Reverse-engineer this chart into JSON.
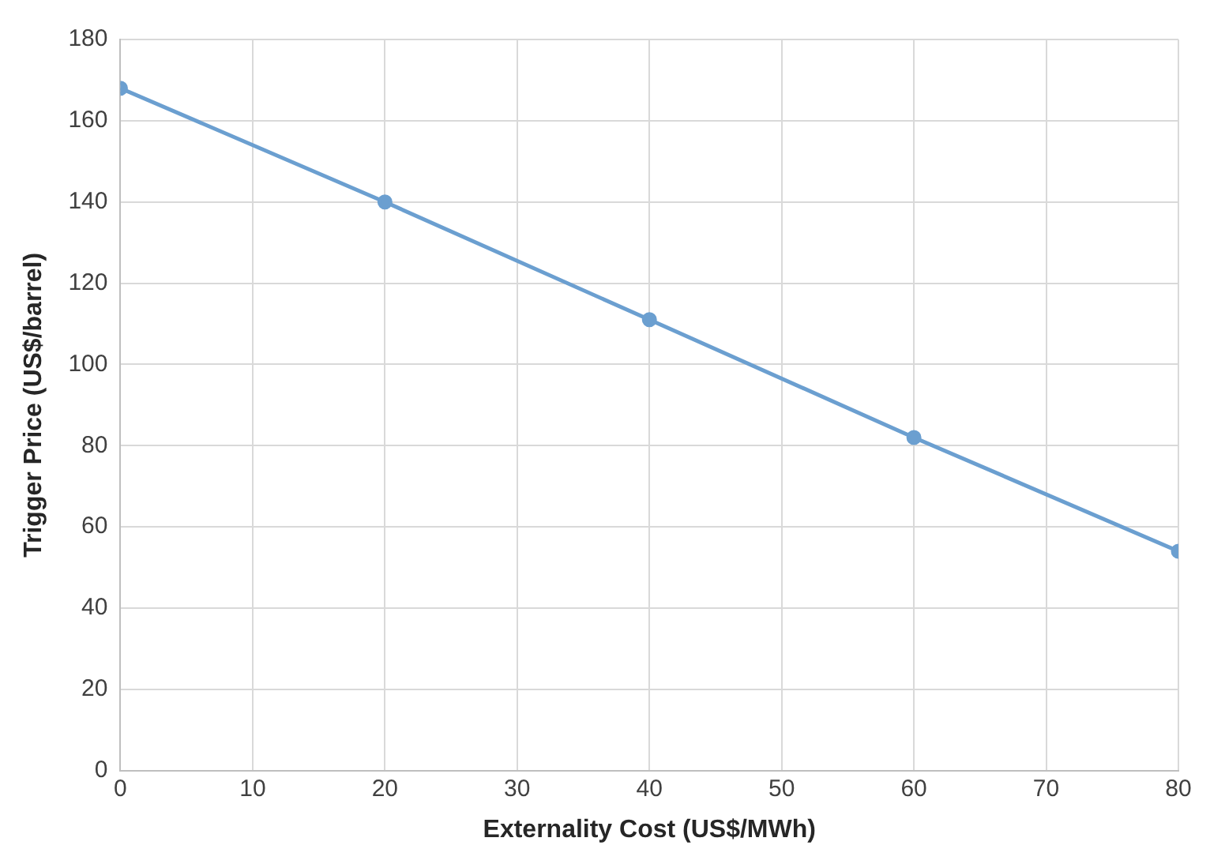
{
  "chart_data": {
    "type": "line",
    "xlabel": "Externality Cost (US$/MWh)",
    "ylabel": "Trigger Price (US$/barrel)",
    "x": [
      0,
      20,
      40,
      60,
      80
    ],
    "series": [
      {
        "color": "#6b9fd0",
        "values": [
          168,
          140,
          111,
          82,
          54
        ]
      }
    ],
    "xlim": [
      0,
      80
    ],
    "xticks": [
      0,
      10,
      20,
      30,
      40,
      50,
      60,
      70,
      80
    ],
    "ylim": [
      0,
      180
    ],
    "yticks": [
      0,
      20,
      40,
      60,
      80,
      100,
      120,
      140,
      160,
      180
    ],
    "grid": true,
    "legend": false,
    "marker": "circle",
    "line_style": "solid"
  }
}
